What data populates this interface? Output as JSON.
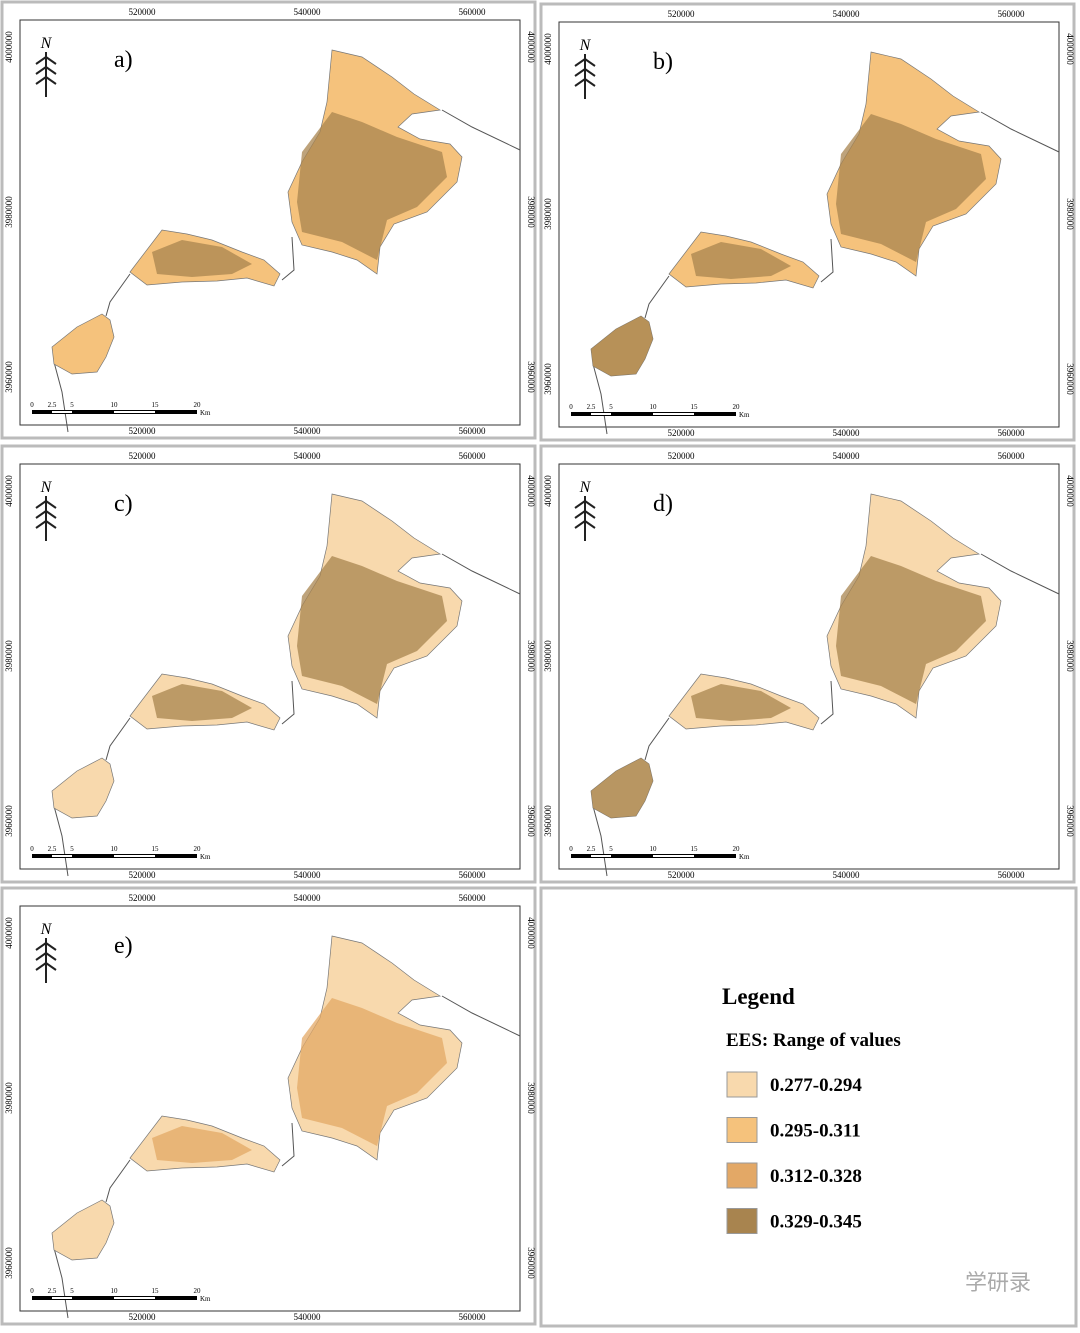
{
  "panels": [
    {
      "label": "a)"
    },
    {
      "label": "b)"
    },
    {
      "label": "c)"
    },
    {
      "label": "d)"
    },
    {
      "label": "e)"
    }
  ],
  "map_axes": {
    "x_labels": [
      "520000",
      "540000",
      "560000"
    ],
    "y_labels": [
      "4000000",
      "3980000",
      "3960000"
    ]
  },
  "scale_bar": {
    "labels": [
      "0",
      "2.5",
      "5",
      "10",
      "15",
      "20"
    ],
    "unit": "Km"
  },
  "north": "N",
  "legend": {
    "title": "Legend",
    "subtitle": "EES: Range of values",
    "classes": [
      {
        "label": "0.277-0.294",
        "color": "#f8d9ad"
      },
      {
        "label": "0.295-0.311",
        "color": "#f5c27c"
      },
      {
        "label": "0.312-0.328",
        "color": "#e3a866"
      },
      {
        "label": "0.329-0.345",
        "color": "#a8844f"
      }
    ]
  },
  "watermark": "学研录"
}
